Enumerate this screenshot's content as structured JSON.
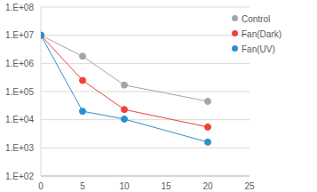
{
  "chart_data": {
    "type": "line",
    "x": [
      0,
      5,
      10,
      20
    ],
    "series": [
      {
        "name": "Control",
        "color": "#a5a5a5",
        "values": [
          10000000,
          1800000,
          170000,
          45000
        ],
        "marker": "circle"
      },
      {
        "name": "Fan(Dark)",
        "color": "#ef4136",
        "values": [
          10000000,
          250000,
          23000,
          5500
        ],
        "marker": "circle"
      },
      {
        "name": "Fan(UV)",
        "color": "#2b8fd0",
        "values": [
          10000000,
          20000,
          10500,
          1600
        ],
        "marker": "circle"
      }
    ],
    "xlim": [
      0,
      25
    ],
    "xticks": [
      0,
      5,
      10,
      15,
      20,
      25
    ],
    "ylim": [
      100,
      100000000
    ],
    "yticks": [
      {
        "value": 100,
        "label": "1.E+02"
      },
      {
        "value": 1000,
        "label": "1.E+03"
      },
      {
        "value": 10000,
        "label": "1.E+04"
      },
      {
        "value": 100000,
        "label": "1.E+05"
      },
      {
        "value": 1000000,
        "label": "1.E+06"
      },
      {
        "value": 10000000,
        "label": "1.E+07"
      },
      {
        "value": 100000000,
        "label": "1.E+08"
      }
    ],
    "log": "y",
    "grid": true,
    "legend": "upper right"
  }
}
